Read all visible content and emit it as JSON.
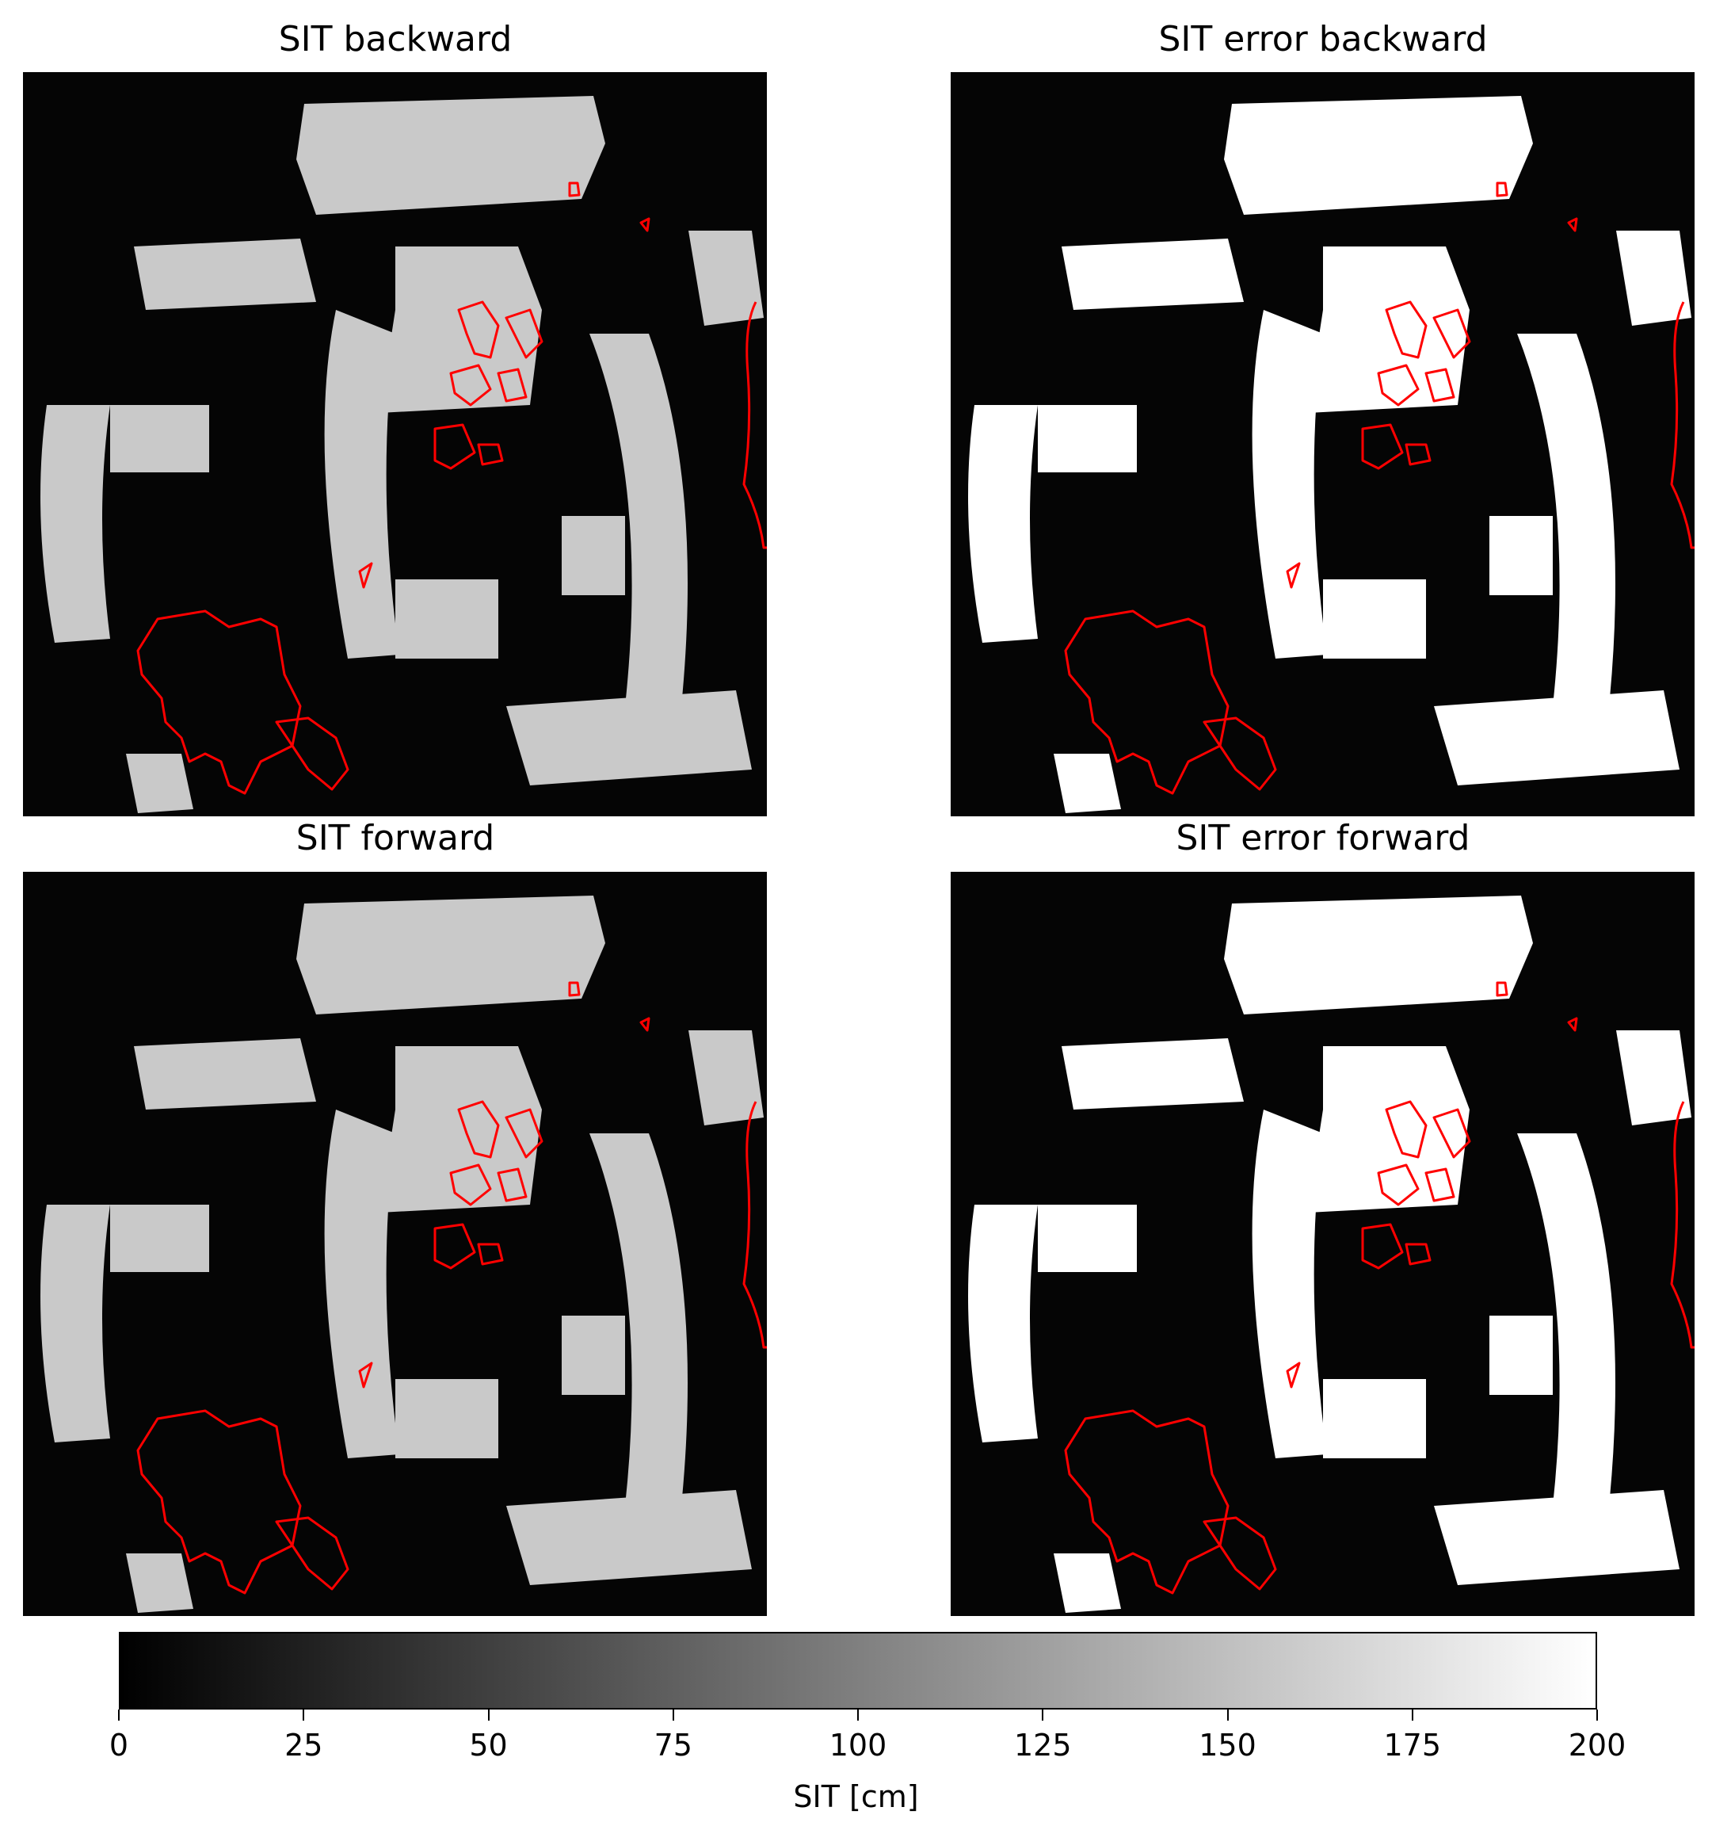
{
  "panels": [
    {
      "title": "SIT backward",
      "kind": "value"
    },
    {
      "title": "SIT error backward",
      "kind": "error"
    },
    {
      "title": "SIT forward",
      "kind": "value"
    },
    {
      "title": "SIT error forward",
      "kind": "error"
    }
  ],
  "colors": {
    "background_value": "#050505",
    "band_value": "#c9c9c9",
    "band_error": "#ffffff",
    "coastline": "#ff0000"
  },
  "colorbar": {
    "label": "SIT [cm]",
    "min": 0,
    "max": 200,
    "ticks": [
      "0",
      "25",
      "50",
      "75",
      "100",
      "125",
      "150",
      "175",
      "200"
    ],
    "colormap": "gray"
  },
  "chart_data": [
    {
      "type": "heatmap",
      "title": "SIT backward",
      "colormap": "gray",
      "zlim": [
        0,
        200
      ],
      "band_value_cm": 160,
      "background_value_cm": 5
    },
    {
      "type": "heatmap",
      "title": "SIT error backward",
      "colormap": "gray",
      "zlim": [
        0,
        200
      ],
      "band_value_cm": 200,
      "background_value_cm": 5
    },
    {
      "type": "heatmap",
      "title": "SIT forward",
      "colormap": "gray",
      "zlim": [
        0,
        200
      ],
      "band_value_cm": 160,
      "background_value_cm": 5
    },
    {
      "type": "heatmap",
      "title": "SIT error forward",
      "colormap": "gray",
      "zlim": [
        0,
        200
      ],
      "band_value_cm": 200,
      "background_value_cm": 5
    }
  ]
}
